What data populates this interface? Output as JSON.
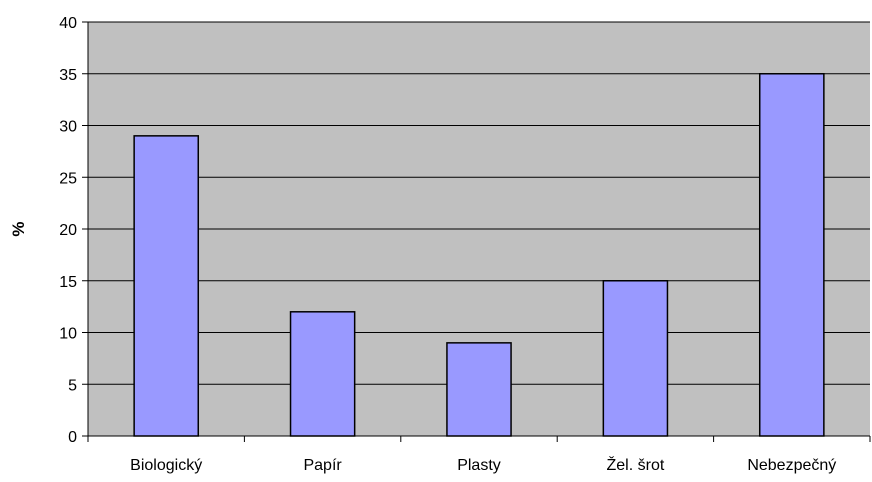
{
  "chart_data": {
    "type": "bar",
    "categories": [
      "Biologický",
      "Papír",
      "Plasty",
      "Žel. šrot",
      "Nebezpečný"
    ],
    "values": [
      29,
      12,
      9,
      15,
      35
    ],
    "title": "",
    "xlabel": "",
    "ylabel": "%",
    "ylim": [
      0,
      40
    ],
    "yticks": [
      0,
      5,
      10,
      15,
      20,
      25,
      30,
      35,
      40
    ],
    "grid": true,
    "legend": "none",
    "colors": {
      "bar_fill": "#9999ff",
      "bar_stroke": "#000000",
      "plot_background": "#c0c0c0",
      "gridline": "#000000"
    }
  }
}
